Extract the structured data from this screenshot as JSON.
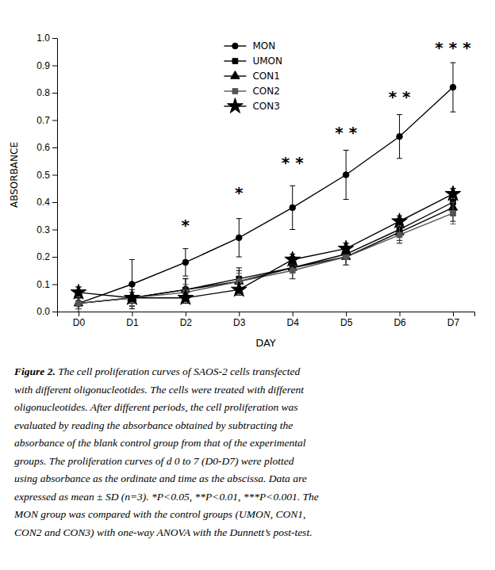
{
  "chart_data": {
    "type": "line",
    "xlabel": "DAY",
    "ylabel": "ABSORBANCE",
    "x": [
      0,
      1,
      2,
      3,
      4,
      5,
      6,
      7
    ],
    "xlim": [
      -0.4,
      7.4
    ],
    "xticks": [
      {
        "value": 0,
        "label": "D0"
      },
      {
        "value": 1,
        "label": "D1"
      },
      {
        "value": 2,
        "label": "D2"
      },
      {
        "value": 3,
        "label": "D3"
      },
      {
        "value": 4,
        "label": "D4"
      },
      {
        "value": 5,
        "label": "D5"
      },
      {
        "value": 6,
        "label": "D6"
      },
      {
        "value": 7,
        "label": "D7"
      }
    ],
    "ylim": [
      0.0,
      1.0
    ],
    "yticks": [
      {
        "value": 0.0,
        "label": "0.0"
      },
      0.1,
      0.2,
      0.3,
      0.4,
      0.5,
      0.6,
      0.7,
      0.8,
      0.9,
      {
        "value": 1.0,
        "label": "1.0"
      }
    ],
    "legend": "top",
    "series": [
      {
        "name": "MON",
        "color": "#000000",
        "marker": "circle",
        "values": [
          0.03,
          0.1,
          0.18,
          0.27,
          0.38,
          0.5,
          0.64,
          0.82
        ],
        "errors": [
          0.06,
          0.09,
          0.05,
          0.07,
          0.08,
          0.09,
          0.08,
          0.09
        ]
      },
      {
        "name": "UMON",
        "color": "#000000",
        "marker": "square",
        "values": [
          0.03,
          0.05,
          0.08,
          0.12,
          0.16,
          0.21,
          0.3,
          0.4
        ],
        "errors": [
          0.02,
          0.03,
          0.04,
          0.04,
          0.04,
          0.04,
          0.04,
          0.05
        ]
      },
      {
        "name": "CON1",
        "color": "#000000",
        "marker": "triangle",
        "values": [
          0.03,
          0.05,
          0.08,
          0.11,
          0.16,
          0.2,
          0.29,
          0.38
        ],
        "errors": [
          0.02,
          0.03,
          0.04,
          0.04,
          0.04,
          0.03,
          0.04,
          0.05
        ]
      },
      {
        "name": "CON2",
        "color": "#555555",
        "marker": "square",
        "values": [
          0.03,
          0.05,
          0.07,
          0.11,
          0.15,
          0.2,
          0.28,
          0.36
        ],
        "errors": [
          0.02,
          0.03,
          0.03,
          0.03,
          0.03,
          0.03,
          0.03,
          0.04
        ]
      },
      {
        "name": "CON3",
        "color": "#000000",
        "marker": "star",
        "values": [
          0.07,
          0.05,
          0.05,
          0.08,
          0.19,
          0.23,
          0.33,
          0.43
        ],
        "errors": [
          0.02,
          0.02,
          0.02,
          0.02,
          0.02,
          0.02,
          0.02,
          0.02
        ]
      }
    ],
    "annotations": [
      {
        "x": 2,
        "y": 0.295,
        "text": "*"
      },
      {
        "x": 3,
        "y": 0.415,
        "text": "*"
      },
      {
        "x": 4,
        "y": 0.525,
        "text": "* *"
      },
      {
        "x": 5,
        "y": 0.635,
        "text": "* *"
      },
      {
        "x": 6,
        "y": 0.765,
        "text": "* *"
      },
      {
        "x": 7,
        "y": 0.945,
        "text": "* * *"
      }
    ],
    "caption": [
      "Figure 2.  The cell proliferation curves of SAOS-2 cells transfected",
      "with different oligonucleotides. The cells were treated with different",
      "oligonucleotides. After different periods, the cell proliferation was",
      "evaluated by reading the absorbance obtained by subtracting the",
      "absorbance of the blank control group from that of the experimental",
      "groups. The proliferation curves of d 0 to 7 (D0-D7) were plotted",
      "using absorbance as the ordinate and time as the abscissa. Data are",
      "expressed as mean ± SD (n=3). *P<0.05, **P<0.01, ***P<0.001. The",
      "MON group was compared with the control groups (UMON, CON1,",
      "CON2 and CON3) with one-way ANOVA with the Dunnett’s post-test."
    ]
  }
}
